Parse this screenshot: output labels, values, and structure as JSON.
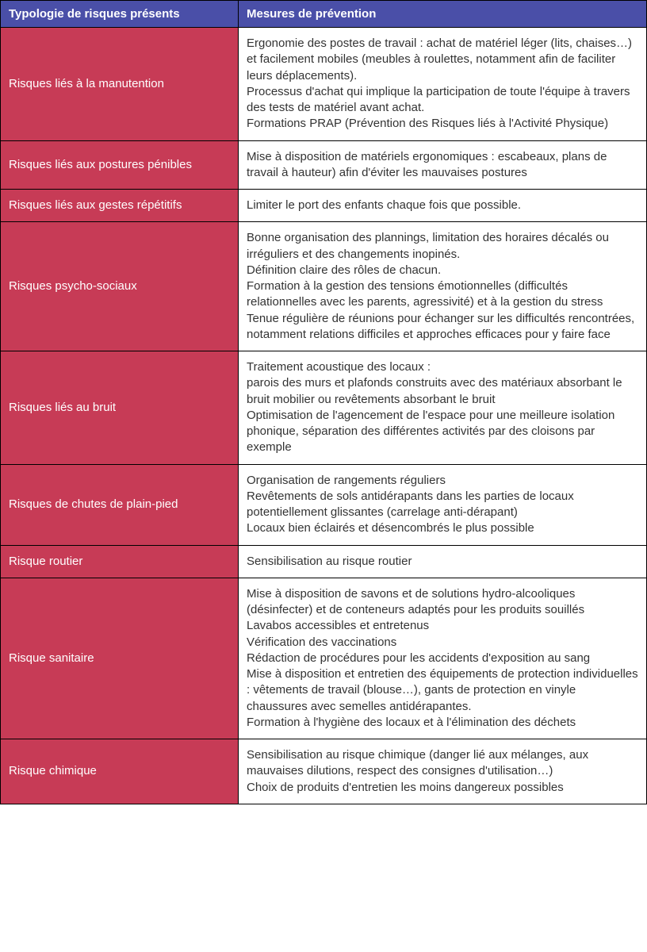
{
  "table": {
    "header_bg": "#4a4fa8",
    "risk_bg": "#c73b56",
    "columns": [
      "Typologie de risques présents",
      "Mesures de prévention"
    ],
    "rows": [
      {
        "risk": "Risques liés à la manutention",
        "measure": "Ergonomie des postes de travail : achat de matériel léger (lits, chaises…) et facilement mobiles (meubles à roulettes, notamment afin de faciliter leurs déplacements).\nProcessus d'achat qui implique la participation de toute l'équipe à travers des tests de matériel avant achat.\nFormations PRAP (Prévention des Risques liés à l'Activité Physique)"
      },
      {
        "risk": "Risques liés aux postures pénibles",
        "measure": "Mise à disposition de matériels ergonomiques : escabeaux, plans de travail à hauteur) afin d'éviter les mauvaises postures"
      },
      {
        "risk": "Risques liés aux gestes répétitifs",
        "measure": "Limiter le port des enfants chaque fois que possible."
      },
      {
        "risk": "Risques psycho-sociaux",
        "measure": "Bonne organisation des plannings, limitation des horaires décalés ou irréguliers et des changements inopinés.\nDéfinition claire des rôles de chacun.\nFormation à la gestion des tensions émotionnelles (difficultés relationnelles avec les parents, agressivité) et à la gestion du stress\nTenue régulière de réunions pour échanger sur les difficultés rencontrées, notamment relations difficiles et approches efficaces pour y faire face"
      },
      {
        "risk": "Risques liés au bruit",
        "measure": "Traitement acoustique des locaux :\nparois des murs et plafonds construits avec des matériaux absorbant le bruit mobilier ou revêtements absorbant le bruit\nOptimisation de l'agencement de l'espace pour une meilleure isolation phonique, séparation des différentes activités par des cloisons par exemple"
      },
      {
        "risk": "Risques de chutes de plain-pied",
        "measure": "Organisation de rangements réguliers\nRevêtements de sols antidérapants dans les parties de locaux potentiellement glissantes (carrelage anti-dérapant)\nLocaux bien éclairés et désencombrés le plus possible"
      },
      {
        "risk": "Risque routier",
        "measure": "Sensibilisation au risque routier"
      },
      {
        "risk": "Risque sanitaire",
        "measure": "Mise à disposition de savons et de solutions hydro-alcooliques (désinfecter) et de conteneurs adaptés pour les produits souillés\nLavabos accessibles et entretenus\nVérification des vaccinations\nRédaction de procédures pour les accidents d'exposition au sang\nMise à disposition et entretien des équipements de protection individuelles : vêtements de travail (blouse…), gants de protection en vinyle chaussures avec semelles antidérapantes.\nFormation à l'hygiène des locaux et à l'élimination des déchets"
      },
      {
        "risk": "Risque chimique",
        "measure": "Sensibilisation au risque chimique (danger lié aux mélanges, aux mauvaises dilutions, respect des consignes d'utilisation…)\nChoix de produits d'entretien les moins dangereux possibles"
      }
    ]
  }
}
